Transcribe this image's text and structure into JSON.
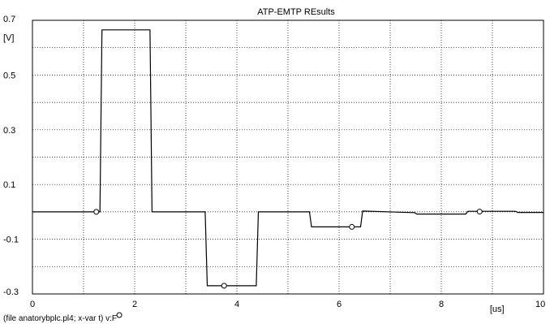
{
  "chart_data": {
    "type": "line",
    "title": "ATP-EMTP REsults",
    "ylabel": "[V]",
    "xlabel": "[us]",
    "xlim": [
      0,
      10
    ],
    "ylim": [
      -0.3,
      0.7
    ],
    "xticks": [
      0,
      2,
      4,
      6,
      8,
      10
    ],
    "xtick_labels": [
      "0",
      "2",
      "4",
      "6",
      "8",
      "10"
    ],
    "yticks": [
      0.7,
      0.5,
      0.3,
      0.1,
      -0.1,
      -0.3
    ],
    "ytick_labels": [
      "0.7",
      "0.5",
      "0.3",
      "0.1",
      "-0.1",
      "-0.3"
    ],
    "grid": true,
    "footer": "(file anatorybplc.pl4; x-var t)  v:F",
    "series": [
      {
        "name": "v:F",
        "marker": "circle",
        "color": "#000000",
        "x": [
          0,
          1.32,
          1.36,
          2.3,
          2.34,
          3.38,
          3.42,
          4.38,
          4.42,
          5.42,
          5.46,
          6.42,
          6.46,
          7.48,
          7.52,
          8.48,
          8.52,
          9.45,
          9.5,
          10
        ],
        "y": [
          0,
          0,
          0.665,
          0.665,
          0,
          0,
          -0.27,
          -0.27,
          0,
          0,
          -0.055,
          -0.055,
          0.003,
          -0.003,
          -0.008,
          -0.008,
          0.002,
          0.002,
          -0.002,
          -0.002
        ],
        "marker_x": [
          1.25,
          3.75,
          6.25,
          8.75
        ],
        "marker_y": [
          0,
          -0.27,
          -0.055,
          0.001
        ]
      }
    ]
  }
}
